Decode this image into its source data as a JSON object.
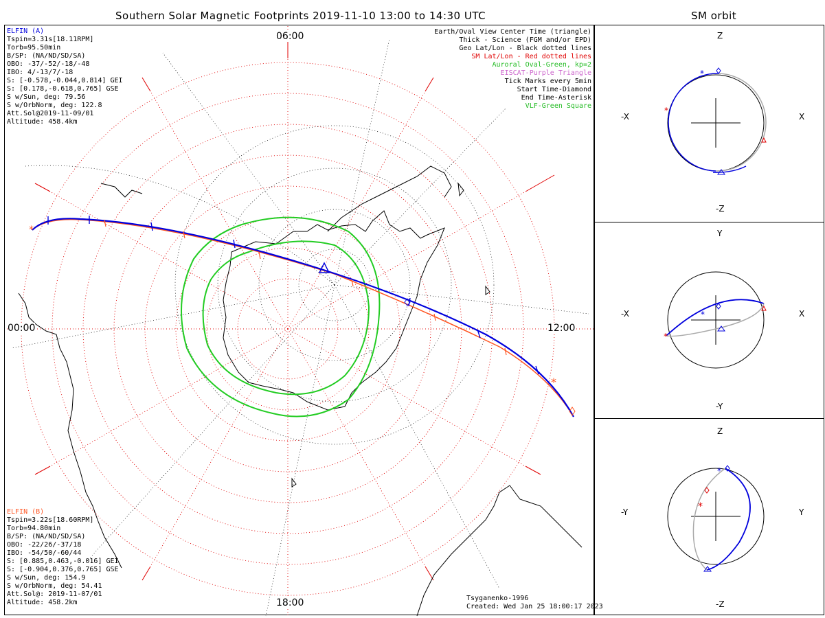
{
  "title": "Southern Solar Magnetic Footprints 2019-11-10 13:00 to 14:30 UTC",
  "sm_orbit_title": "SM orbit",
  "hours": {
    "top": "06:00",
    "left": "00:00",
    "right": "12:00",
    "bottom": "18:00"
  },
  "legend": [
    {
      "text": "Earth/Oval View Center Time (triangle)",
      "color": "#000000"
    },
    {
      "text": "Thick - Science (FGM and/or EPD)",
      "color": "#000000"
    },
    {
      "text": "Geo Lat/Lon - Black dotted lines",
      "color": "#000000"
    },
    {
      "text": "SM Lat/Lon - Red dotted lines",
      "color": "#e00000"
    },
    {
      "text": "Auroral Oval-Green, kp=2",
      "color": "#22bb22"
    },
    {
      "text": "EISCAT-Purple Triangle",
      "color": "#cc66cc"
    },
    {
      "text": "Tick Marks every 5min",
      "color": "#000000"
    },
    {
      "text": "Start Time-Diamond",
      "color": "#000000"
    },
    {
      "text": "End Time-Asterisk",
      "color": "#000000"
    },
    {
      "text": "VLF-Green Square",
      "color": "#22bb22"
    }
  ],
  "elfin_a": {
    "name": "ELFIN (A)",
    "color": "#0000dd",
    "lines": [
      "Tspin=3.31s[18.11RPM]",
      "Torb=95.50min",
      "B/SP: (NA/ND/SD/SA)",
      "OBO: -37/-52/-18/-48",
      "IBO: 4/-13/7/-18",
      "S: [-0.578,-0.044,0.814] GEI",
      "S: [0.178,-0.618,0.765] GSE",
      "S w/Sun, deg: 79.56",
      "S w/OrbNorm, deg: 122.8",
      "Att.Sol@2019-11-09/01",
      "Altitude: 458.4km"
    ]
  },
  "elfin_b": {
    "name": "ELFIN (B)",
    "color": "#ff5522",
    "lines": [
      "Tspin=3.22s[18.60RPM]",
      "Torb=94.80min",
      "B/SP: (NA/ND/SD/SA)",
      "OBO: -22/26/-37/18",
      "IBO: -54/50/-60/44",
      "S: [0.885,0.463,-0.016] GEI",
      "S: [-0.904,0.376,0.765] GSE",
      "S w/Sun, deg: 154.9",
      "S w/OrbNorm, deg: 54.41",
      "Att.Sol@: 2019-11-07/01",
      "Altitude: 458.2km"
    ]
  },
  "footer": {
    "model": "Tsyganenko-1996",
    "created": "Created: Wed Jan 25 18:00:17 2023"
  },
  "orbit_panels": [
    {
      "top": "Z",
      "bottom": "-Z",
      "left": "-X",
      "right": "X"
    },
    {
      "top": "Y",
      "bottom": "-Y",
      "left": "-X",
      "right": "X"
    },
    {
      "top": "Z",
      "bottom": "-Z",
      "left": "-Y",
      "right": "Y"
    }
  ],
  "colors": {
    "elfin_a": "#0000dd",
    "elfin_b": "#ff5522",
    "oval": "#22cc22",
    "sm_grid": "#e00000",
    "geo_grid": "#000000",
    "orbit_grey": "#aaaaaa"
  }
}
